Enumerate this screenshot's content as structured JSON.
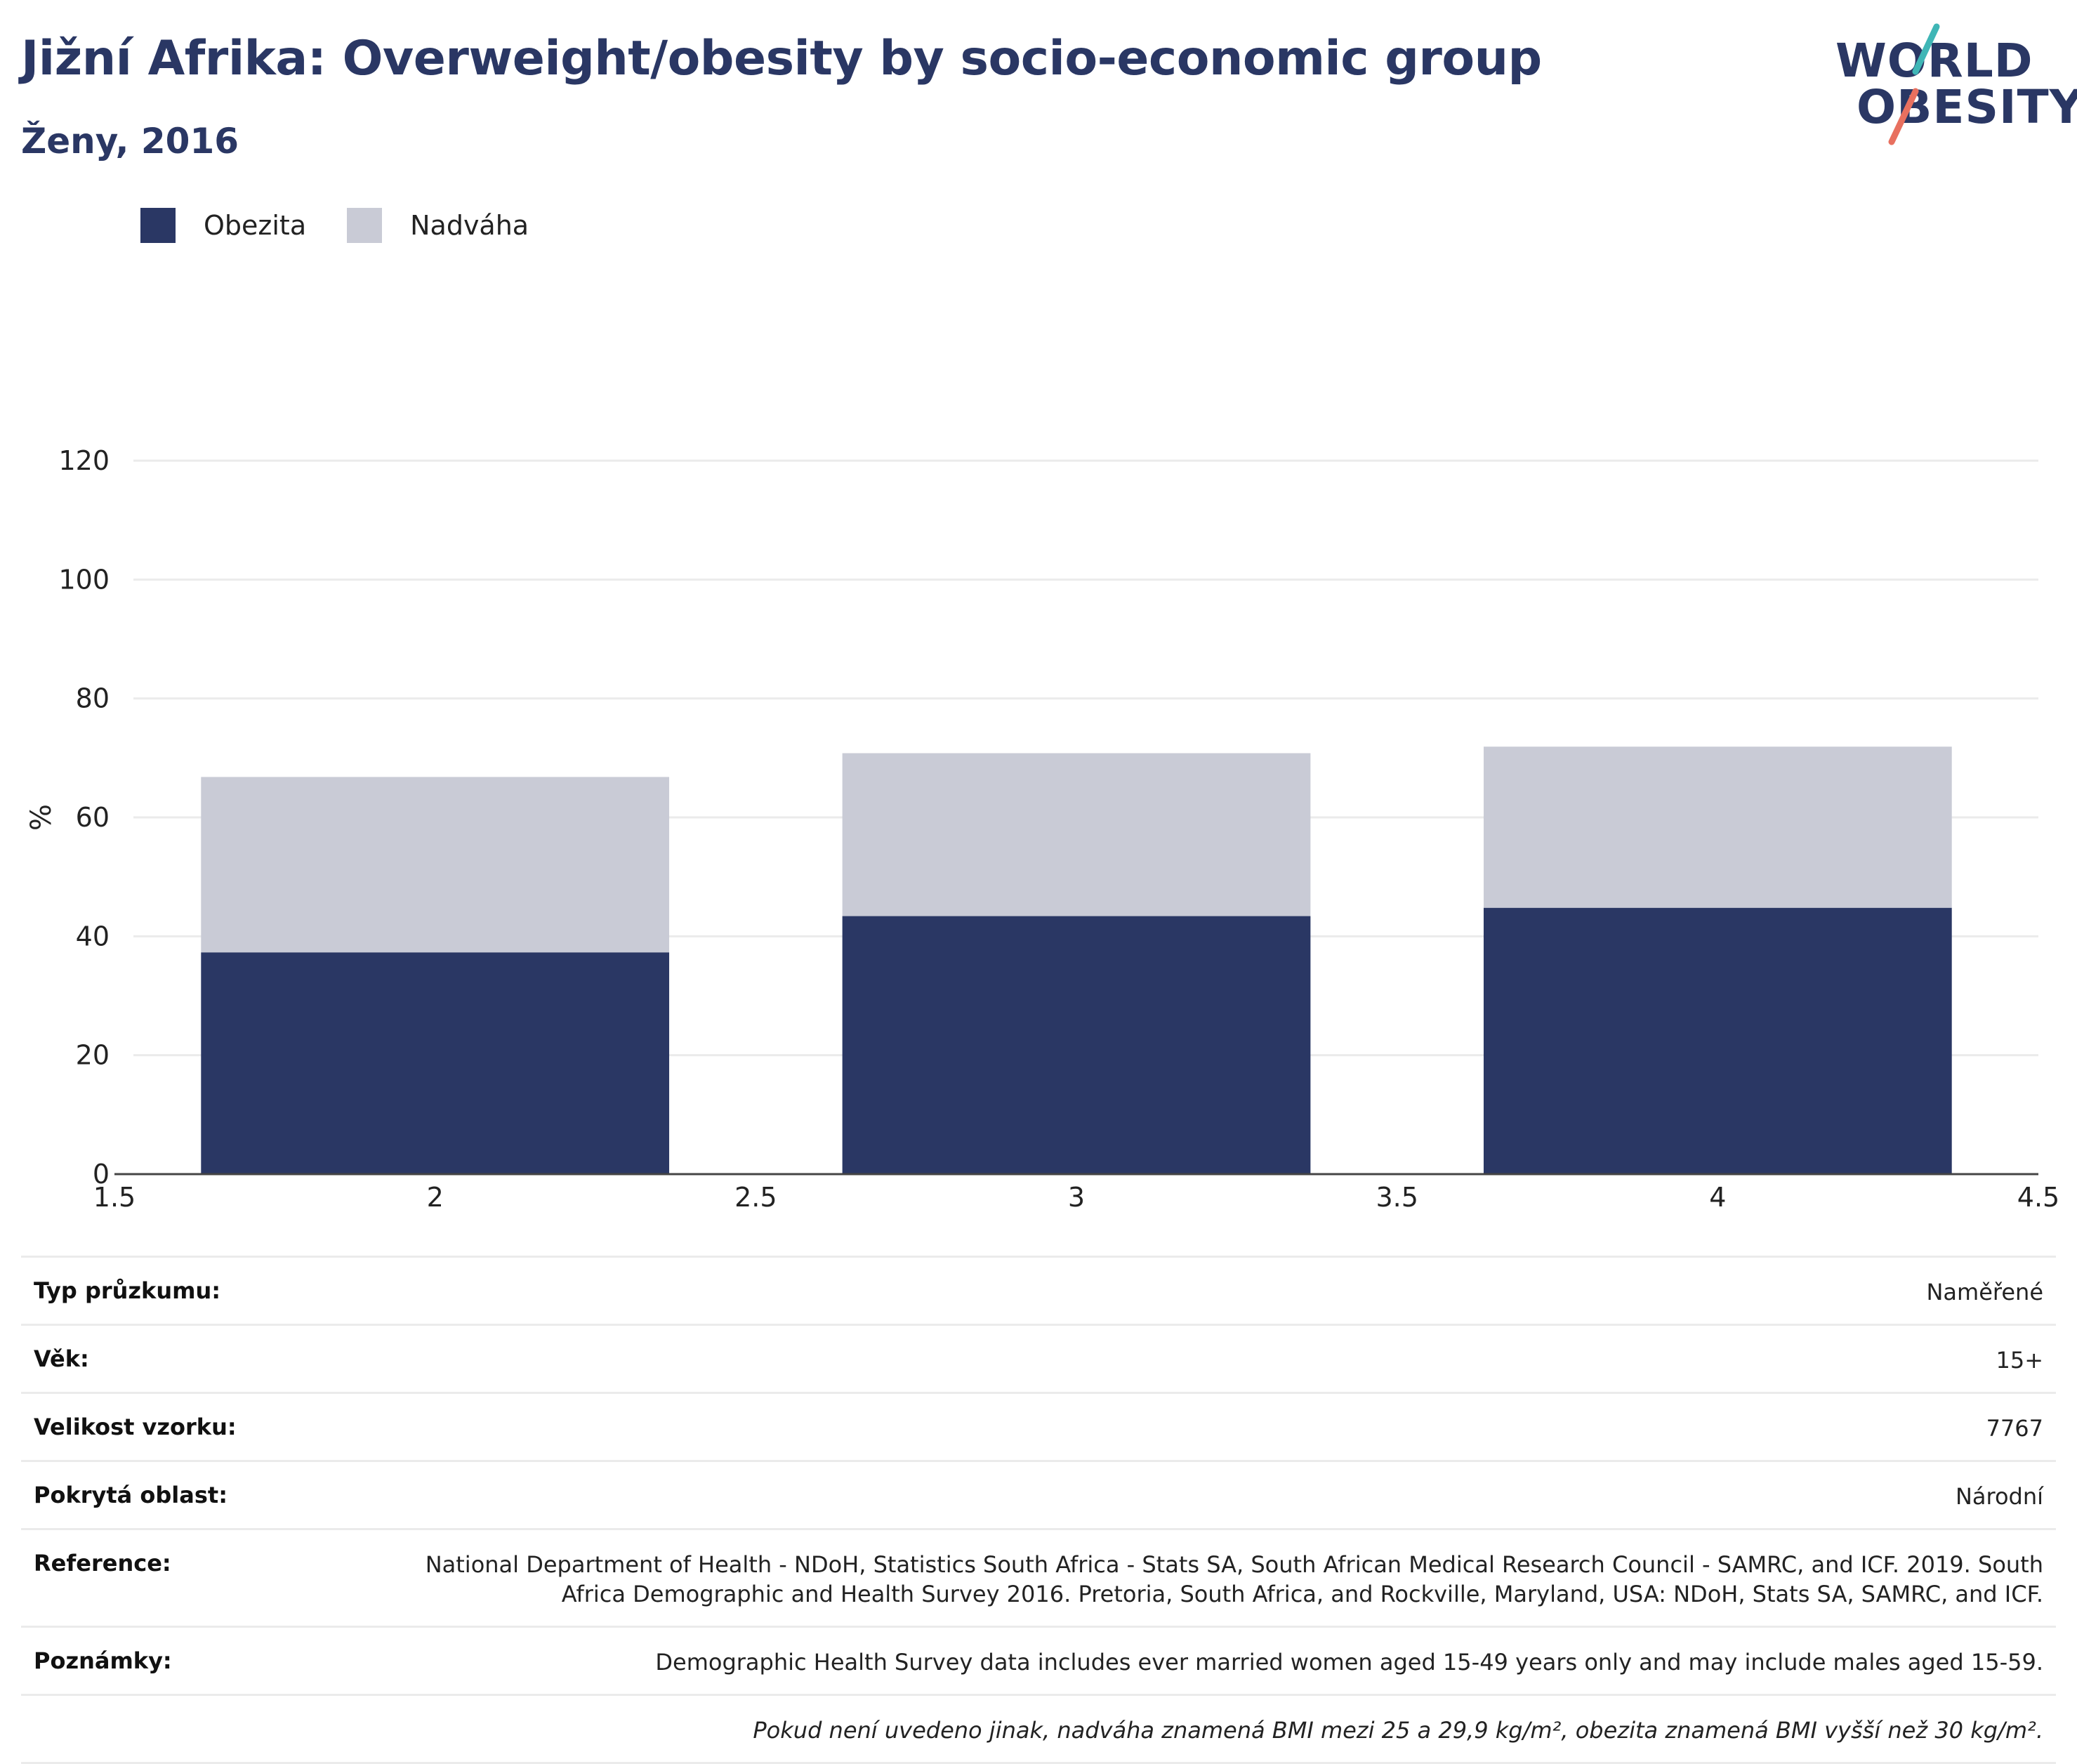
{
  "header": {
    "title": "Jižní Afrika: Overweight/obesity by socio-economic group",
    "subtitle": "Ženy, 2016"
  },
  "logo": {
    "line1": "WORLD",
    "line2": "OBESITY",
    "accent_colors": [
      "#3fb6b6",
      "#e8705f"
    ]
  },
  "legend": [
    {
      "label": "Obezita",
      "color": "#2a3764"
    },
    {
      "label": "Nadváha",
      "color": "#c9cbd6"
    }
  ],
  "chart_data": {
    "type": "bar",
    "stacked": true,
    "x": [
      2,
      3,
      4
    ],
    "series": [
      {
        "name": "Obezita",
        "color": "#2a3764",
        "values": [
          37.3,
          43.4,
          44.8
        ]
      },
      {
        "name": "Nadváha",
        "color": "#c9cbd6",
        "values": [
          29.5,
          27.4,
          27.1
        ]
      }
    ],
    "totals": [
      66.8,
      70.8,
      71.9
    ],
    "xlim": [
      1.5,
      4.5
    ],
    "xticks": [
      "1.5",
      "2",
      "2.5",
      "3",
      "3.5",
      "4",
      "4.5"
    ],
    "ylim": [
      0,
      120
    ],
    "yticks": [
      "0",
      "20",
      "40",
      "60",
      "80",
      "100",
      "120"
    ],
    "ylabel": "%",
    "xlabel": "",
    "grid": true,
    "legend_position": "top-left"
  },
  "info": [
    {
      "key": "Typ průzkumu:",
      "value": "Naměřené"
    },
    {
      "key": "Věk:",
      "value": "15+"
    },
    {
      "key": "Velikost vzorku:",
      "value": "7767"
    },
    {
      "key": "Pokrytá oblast:",
      "value": "Národní"
    },
    {
      "key": "Reference:",
      "value": "National Department of Health - NDoH, Statistics South Africa - Stats SA, South African Medical Research Council - SAMRC, and ICF. 2019. South Africa Demographic and Health Survey 2016. Pretoria, South Africa, and Rockville, Maryland, USA: NDoH, Stats SA, SAMRC, and ICF."
    },
    {
      "key": "Poznámky:",
      "value": "Demographic Health Survey data includes ever married women aged 15-49 years only and may include males aged 15-59."
    },
    {
      "key": "",
      "value": "Pokud není uvedeno jinak, nadváha znamená BMI mezi 25 a 29,9 kg/m², obezita znamená BMI vyšší než 30 kg/m²."
    }
  ]
}
